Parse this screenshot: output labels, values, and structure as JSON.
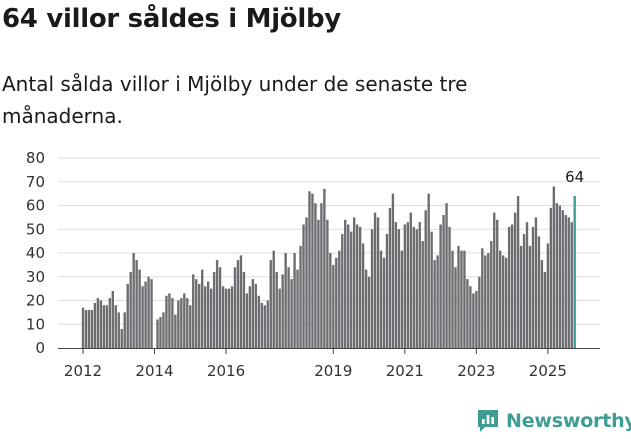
{
  "title": "64 villor såldes i Mjölby",
  "subtitle": "Antal sålda villor i Mjölby under de senaste tre månaderna.",
  "brand": {
    "name": "Newsworthy",
    "color": "#3f9d94",
    "icon": "newsworthy-logo-icon"
  },
  "chart_data": {
    "type": "bar",
    "title": "64 villor såldes i Mjölby",
    "xlabel": "",
    "ylabel": "",
    "ylim": [
      0,
      80
    ],
    "yticks": [
      "0",
      "10",
      "20",
      "30",
      "40",
      "50",
      "60",
      "70",
      "80"
    ],
    "xticks": [
      "2012",
      "2014",
      "2016",
      "2019",
      "2021",
      "2023",
      "2025"
    ],
    "start": "2012-01",
    "bar_color": "#6d6c71",
    "highlight_color": "#3f9d94",
    "highlight_label": "64",
    "values": [
      17,
      16,
      16,
      16,
      19,
      21,
      20,
      18,
      18,
      21,
      24,
      18,
      15,
      8,
      15,
      27,
      32,
      40,
      37,
      33,
      26,
      28,
      30,
      29,
      0,
      12,
      13,
      15,
      22,
      23,
      21,
      14,
      20,
      21,
      23,
      21,
      18,
      31,
      29,
      27,
      33,
      26,
      28,
      25,
      32,
      37,
      34,
      26,
      25,
      25,
      26,
      34,
      37,
      39,
      32,
      23,
      26,
      29,
      27,
      22,
      19,
      18,
      20,
      37,
      41,
      32,
      25,
      31,
      40,
      34,
      29,
      40,
      33,
      43,
      52,
      55,
      66,
      65,
      61,
      54,
      61,
      67,
      54,
      40,
      35,
      38,
      41,
      48,
      54,
      52,
      49,
      55,
      52,
      51,
      44,
      33,
      30,
      50,
      57,
      55,
      41,
      38,
      48,
      59,
      65,
      53,
      50,
      41,
      52,
      53,
      57,
      51,
      50,
      53,
      45,
      58,
      65,
      49,
      37,
      39,
      52,
      56,
      61,
      51,
      41,
      34,
      43,
      41,
      41,
      29,
      26,
      23,
      24,
      30,
      42,
      39,
      40,
      45,
      57,
      54,
      41,
      39,
      38,
      51,
      52,
      57,
      64,
      43,
      48,
      53,
      43,
      51,
      55,
      47,
      37,
      32,
      44,
      59,
      68,
      61,
      60,
      58,
      56,
      55,
      53,
      64
    ],
    "series": [
      {
        "name": "Antal sålda villor",
        "values": "see values"
      }
    ]
  }
}
